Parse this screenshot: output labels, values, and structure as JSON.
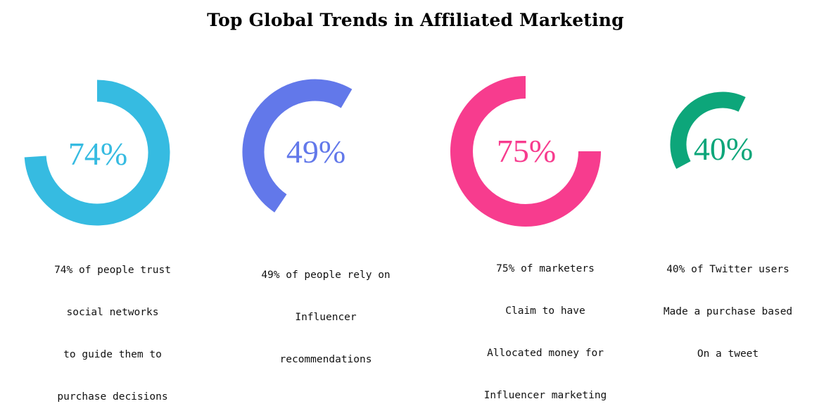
{
  "title": "Top Global Trends in Affiliated Marketing",
  "chart_data": {
    "type": "radial-progress",
    "title": "Top Global Trends in Affiliated Marketing",
    "items": [
      {
        "value": 74,
        "label": "74%",
        "color": "#36BBE1",
        "caption": [
          "74% of people trust",
          "social networks",
          "to guide them to",
          "purchase decisions"
        ]
      },
      {
        "value": 49,
        "label": "49%",
        "color": "#6278EA",
        "caption": [
          "49% of people rely on",
          "Influencer",
          "recommendations"
        ]
      },
      {
        "value": 75,
        "label": "75%",
        "color": "#F73C8E",
        "caption": [
          "75% of marketers",
          "Claim to have",
          "Allocated money for",
          "Influencer marketing"
        ]
      },
      {
        "value": 40,
        "label": "40%",
        "color": "#0DA67A",
        "caption": [
          "40% of Twitter users",
          "Made a purchase based",
          "On a tweet"
        ]
      }
    ]
  }
}
